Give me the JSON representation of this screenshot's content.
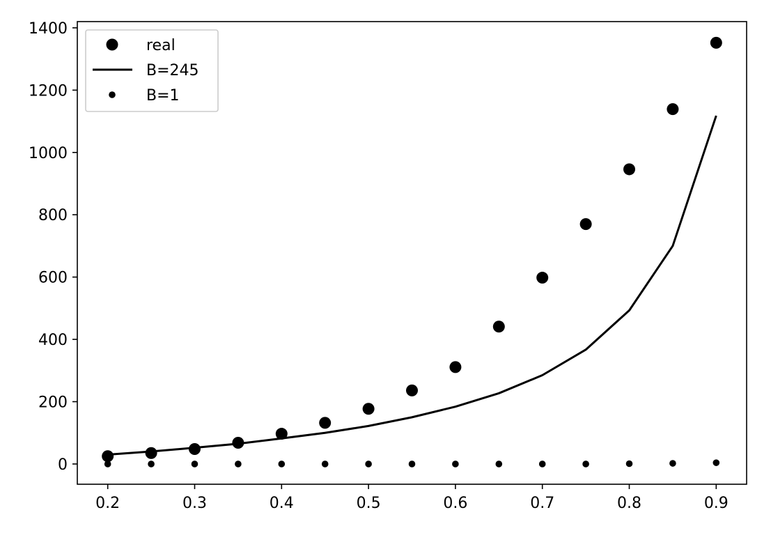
{
  "chart_data": {
    "type": "scatter",
    "title": "",
    "xlabel": "",
    "ylabel": "",
    "xlim": [
      0.165,
      0.935
    ],
    "ylim": [
      -65,
      1420
    ],
    "x_ticks": [
      0.2,
      0.3,
      0.4,
      0.5,
      0.6,
      0.7,
      0.8,
      0.9
    ],
    "y_ticks": [
      0,
      200,
      400,
      600,
      800,
      1000,
      1200,
      1400
    ],
    "grid": false,
    "legend_position": "upper-left",
    "x": [
      0.2,
      0.25,
      0.3,
      0.35,
      0.4,
      0.45,
      0.5,
      0.55,
      0.6,
      0.65,
      0.7,
      0.75,
      0.8,
      0.85,
      0.9
    ],
    "series": [
      {
        "name": "real",
        "style": "large-dot",
        "color": "#000000",
        "values": [
          25,
          35,
          48,
          68,
          97,
          132,
          177,
          236,
          311,
          441,
          598,
          770,
          946,
          1139,
          1352
        ]
      },
      {
        "name": "B=245",
        "style": "line",
        "color": "#000000",
        "values": [
          30,
          40,
          52,
          65,
          82,
          100,
          122,
          150,
          184,
          227,
          285,
          367,
          493,
          700,
          1118
        ]
      },
      {
        "name": "B=1",
        "style": "small-dot",
        "color": "#000000",
        "values": [
          0,
          0,
          0,
          0,
          0,
          0,
          0,
          0,
          0,
          0,
          0,
          0,
          1,
          2,
          4
        ]
      }
    ]
  }
}
